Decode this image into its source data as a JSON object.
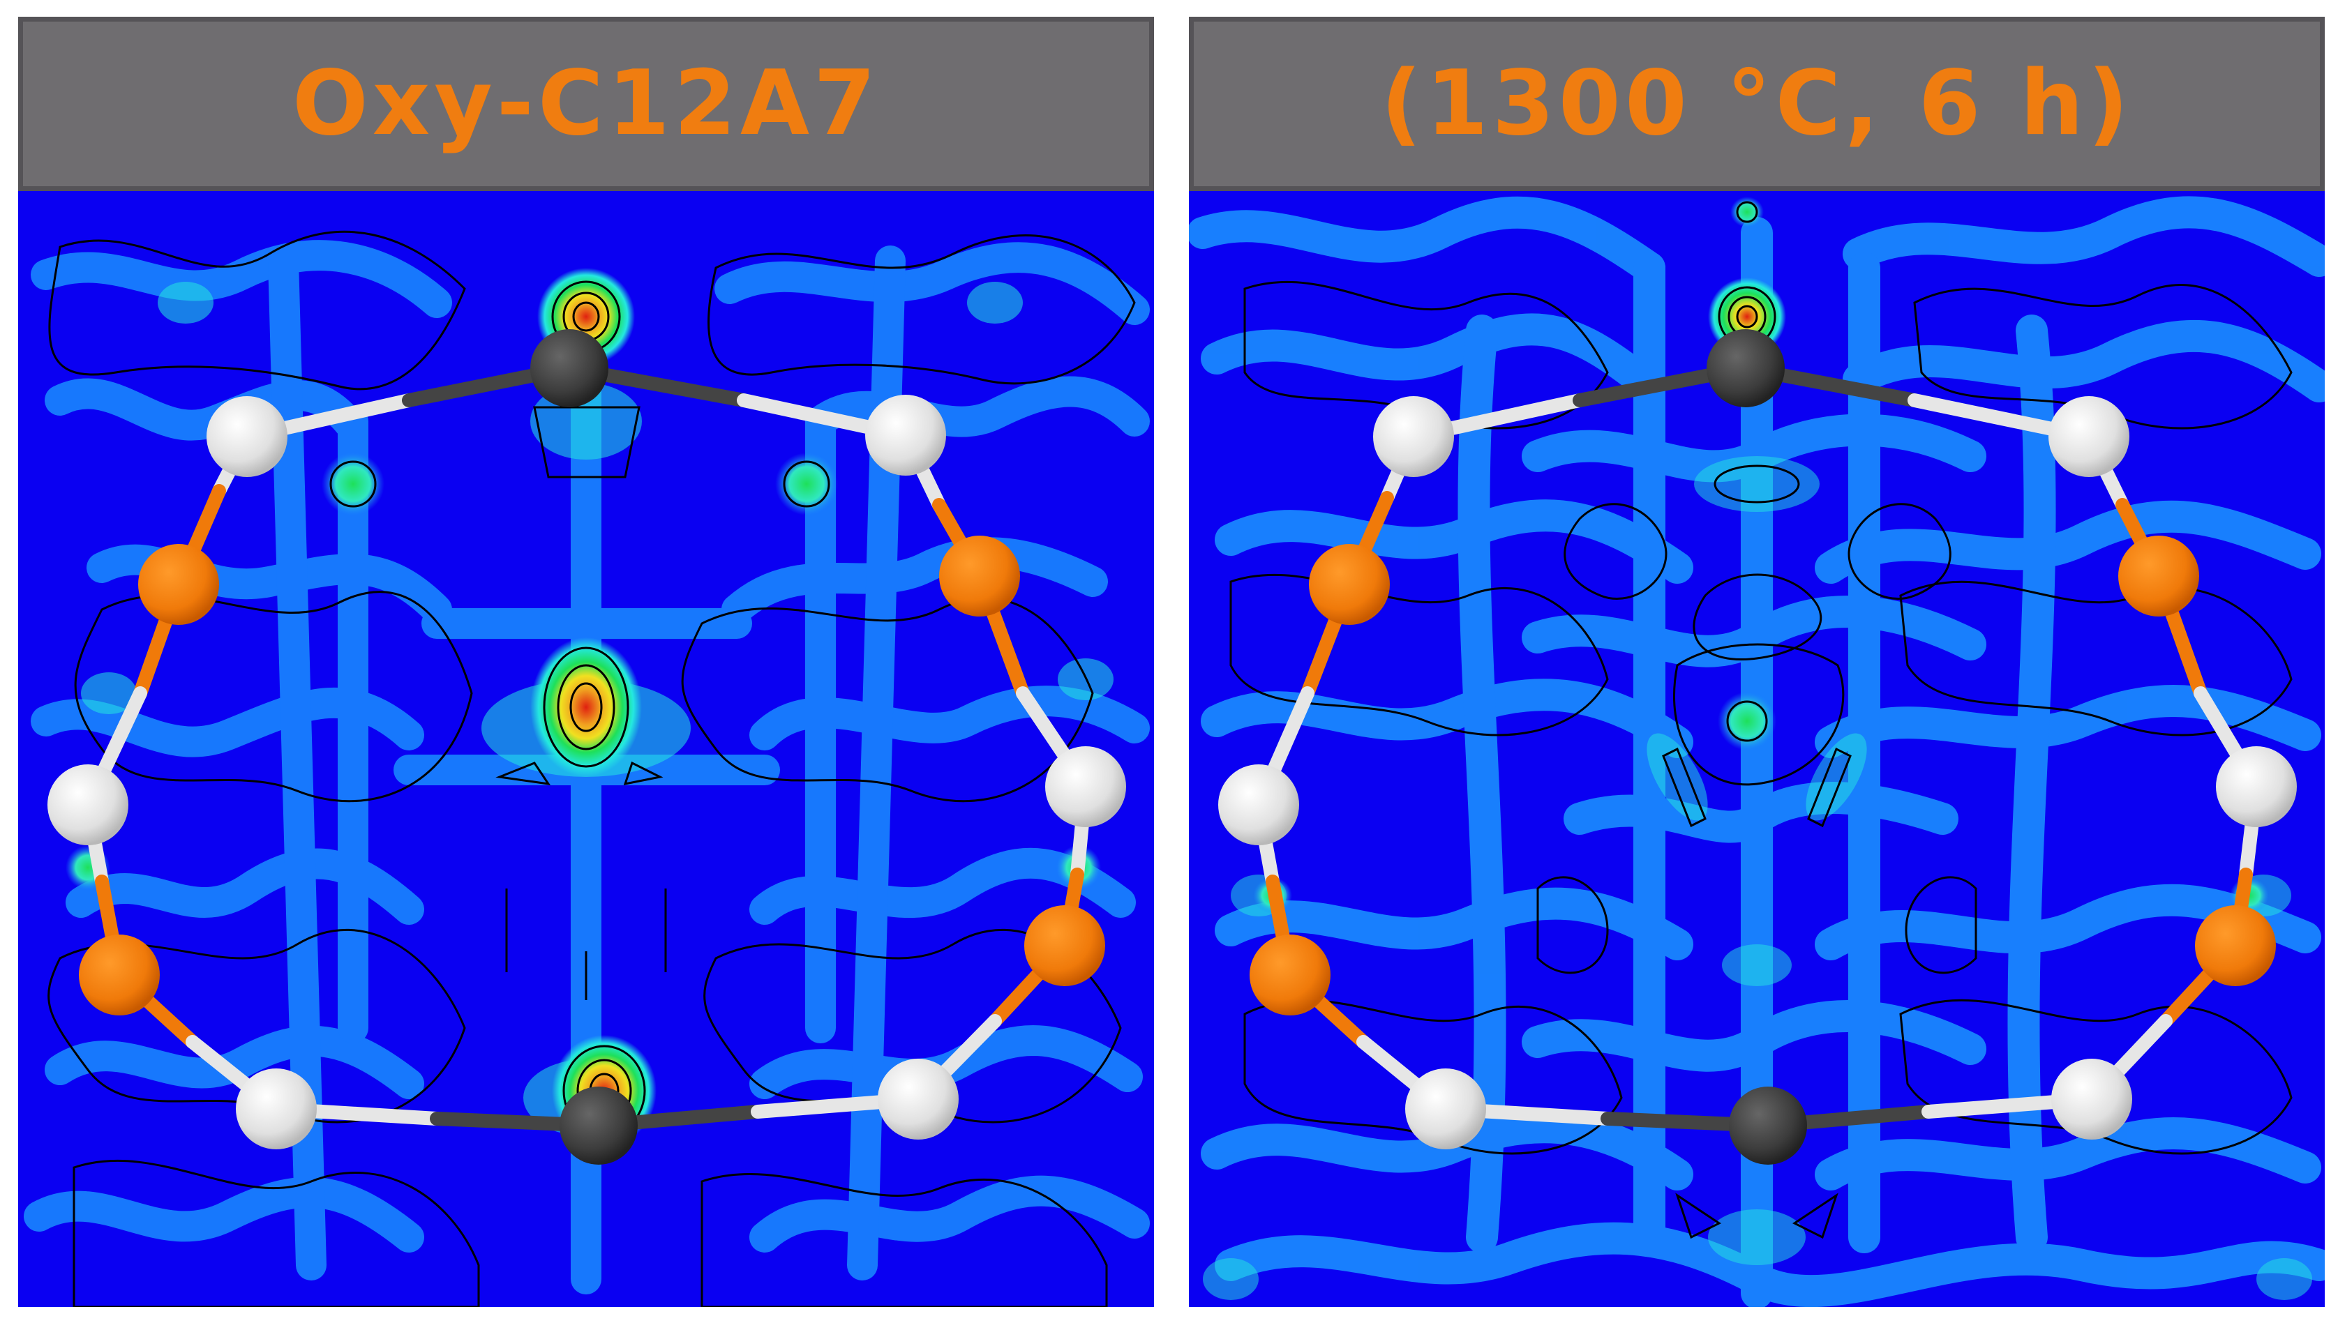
{
  "panels": [
    {
      "title": "Oxy-C12A7"
    },
    {
      "title": "(1300 °C, 6 h)"
    }
  ],
  "colors": {
    "background_field": "#0a00f2",
    "low_density": "#1a8dff",
    "mid_density": "#24e8e0",
    "peak_green": "#1ee05a",
    "peak_yellow": "#f0e020",
    "peak_red": "#e02010",
    "contour_line": "#000000",
    "atom_white": "#e6e6e6",
    "atom_orange": "#f07a0a",
    "atom_dark": "#3c3c3c",
    "title_text": "#f07d10",
    "header_fill": "#6f6d70"
  },
  "atoms": {
    "dark": "dark-gray sphere",
    "white": "light-gray sphere",
    "orange": "orange sphere"
  }
}
